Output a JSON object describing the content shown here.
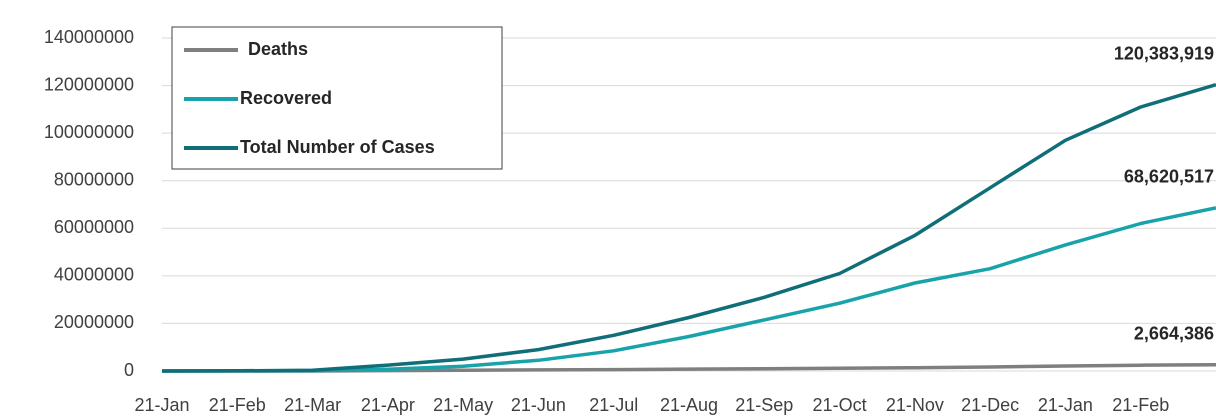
{
  "chart_data": {
    "type": "line",
    "categories": [
      "21-Jan",
      "21-Feb",
      "21-Mar",
      "21-Apr",
      "21-May",
      "21-Jun",
      "21-Jul",
      "21-Aug",
      "21-Sep",
      "21-Oct",
      "21-Nov",
      "21-Dec",
      "21-Jan",
      "21-Feb",
      null
    ],
    "series": [
      {
        "name": "Deaths",
        "color": "#7f7f7f",
        "values": [
          0,
          2000,
          10000,
          170000,
          330000,
          470000,
          600000,
          780000,
          970000,
          1150000,
          1370000,
          1700000,
          2100000,
          2450000,
          2664386
        ],
        "value_labels": [
          null,
          null,
          null,
          null,
          null,
          null,
          null,
          null,
          null,
          null,
          null,
          null,
          null,
          null,
          "2,664,386"
        ]
      },
      {
        "name": "Recovered",
        "color": "#18a3aa",
        "values": [
          0,
          30000,
          100000,
          700000,
          2000000,
          4500000,
          8500000,
          14500000,
          21500000,
          28500000,
          37000000,
          43000000,
          53000000,
          62000000,
          68620517
        ],
        "value_labels": [
          null,
          null,
          null,
          null,
          null,
          null,
          null,
          null,
          null,
          null,
          null,
          null,
          null,
          null,
          "68,620,517"
        ]
      },
      {
        "name": "Total Number of Cases",
        "color": "#0f6e78",
        "values": [
          0,
          75000,
          300000,
          2500000,
          5000000,
          9000000,
          15000000,
          22500000,
          31000000,
          41000000,
          57000000,
          77000000,
          97000000,
          111000000,
          120383919
        ],
        "value_labels": [
          null,
          null,
          null,
          null,
          null,
          null,
          null,
          null,
          null,
          null,
          null,
          null,
          null,
          null,
          "120,383,919"
        ]
      }
    ],
    "ylim": [
      0,
      140000000
    ],
    "yticks": [
      0,
      20000000,
      40000000,
      60000000,
      80000000,
      100000000,
      120000000,
      140000000
    ],
    "grid": true,
    "legend": "top-left"
  }
}
